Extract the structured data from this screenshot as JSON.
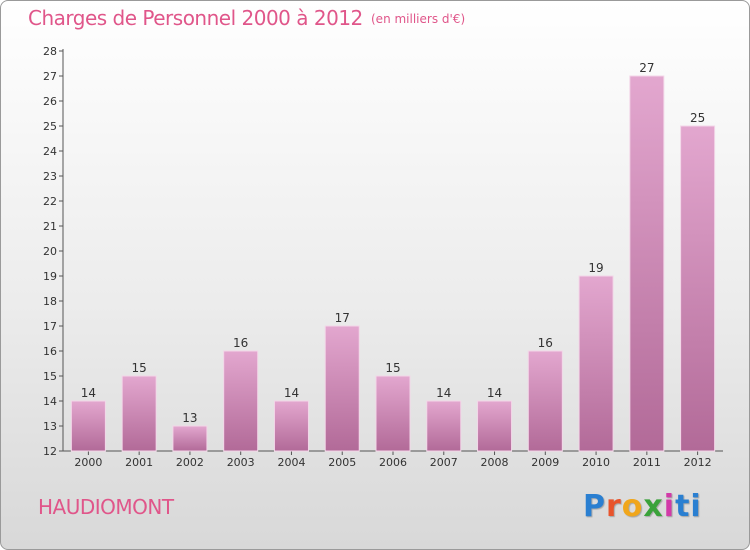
{
  "header": {
    "title": "Charges de Personnel 2000 à 2012",
    "subtitle": "(en milliers d'€)"
  },
  "footer": {
    "commune": "HAUDIOMONT",
    "logo_letters": [
      "P",
      "r",
      "o",
      "x",
      "i",
      "ti"
    ]
  },
  "colors": {
    "accent": "#e0568a",
    "bar_top": "#e3a7cf",
    "bar_bottom": "#b26a98"
  },
  "chart_data": {
    "type": "bar",
    "categories": [
      "2000",
      "2001",
      "2002",
      "2003",
      "2004",
      "2005",
      "2006",
      "2007",
      "2008",
      "2009",
      "2010",
      "2011",
      "2012"
    ],
    "values": [
      14,
      15,
      13,
      16,
      14,
      17,
      15,
      14,
      14,
      16,
      19,
      27,
      25
    ],
    "title": "Charges de Personnel 2000 à 2012",
    "subtitle": "(en milliers d'€)",
    "xlabel": "",
    "ylabel": "",
    "ylim": [
      12,
      28
    ],
    "yticks": [
      12,
      13,
      14,
      15,
      16,
      17,
      18,
      19,
      20,
      21,
      22,
      23,
      24,
      25,
      26,
      27,
      28
    ],
    "grid": false,
    "legend": "none"
  }
}
